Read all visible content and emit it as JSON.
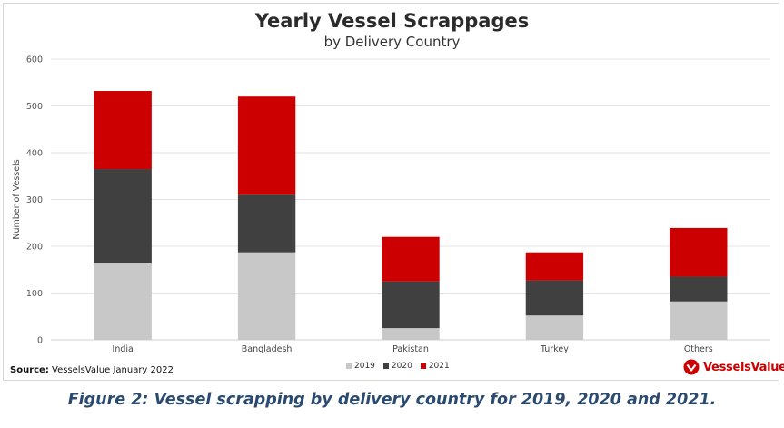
{
  "chart_data": {
    "type": "bar",
    "stacked": true,
    "title": "Yearly Vessel Scrappages",
    "subtitle": "by Delivery Country",
    "xlabel": "",
    "ylabel": "Number of Vessels",
    "ylim": [
      0,
      600
    ],
    "yticks": [
      0,
      100,
      200,
      300,
      400,
      500,
      600
    ],
    "grid": true,
    "legend_position": "bottom",
    "categories": [
      "India",
      "Bangladesh",
      "Pakistan",
      "Turkey",
      "Others"
    ],
    "series": [
      {
        "name": "2019",
        "color": "#c8c8c8",
        "values": [
          165,
          187,
          25,
          52,
          82
        ]
      },
      {
        "name": "2020",
        "color": "#404040",
        "values": [
          200,
          123,
          100,
          75,
          53
        ]
      },
      {
        "name": "2021",
        "color": "#cc0000",
        "values": [
          167,
          210,
          95,
          60,
          104
        ]
      }
    ]
  },
  "source": {
    "label": "Source:",
    "text": " VesselsValue January 2022"
  },
  "brand": {
    "name": "VesselsValue",
    "color": "#cc0000"
  },
  "caption": "Figure 2: Vessel scrapping by delivery country for 2019, 2020 and 2021."
}
